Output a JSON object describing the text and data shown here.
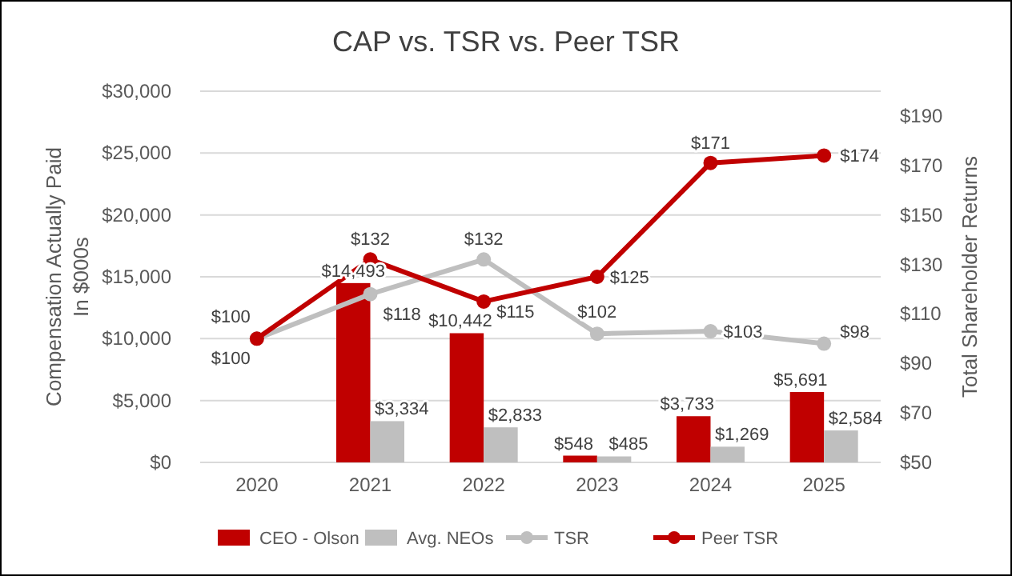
{
  "chart_data": {
    "type": "bar",
    "title": "CAP vs. TSR vs. Peer TSR",
    "ylabel": "Compensation Actually Paid In $000s",
    "y2label": "Total Shareholder Returns",
    "categories": [
      "2020",
      "2021",
      "2022",
      "2023",
      "2024",
      "2025"
    ],
    "series": [
      {
        "name": "CEO - Olson",
        "color": "#c00000",
        "values": [
          null,
          14493,
          10442,
          548,
          3733,
          5691
        ],
        "value_labels": [
          null,
          "$14,493",
          "$10,442",
          "$548",
          "$3,733",
          "$5,691"
        ]
      },
      {
        "name": "Avg. NEOs",
        "color": "#bfbfbf",
        "values": [
          null,
          3334,
          2833,
          485,
          1269,
          2584
        ],
        "value_labels": [
          null,
          "$3,334",
          "$2,833",
          "$485",
          "$1,269",
          "$2,584"
        ]
      },
      {
        "name": "TSR",
        "type": "line",
        "axis": "y2",
        "color": "#bfbfbf",
        "values": [
          100,
          118,
          132,
          102,
          103,
          98
        ],
        "value_labels": [
          "$100",
          "$118",
          "$132",
          "$102",
          "$103",
          "$98"
        ]
      },
      {
        "name": "Peer TSR",
        "type": "line",
        "axis": "y2",
        "color": "#c00000",
        "values": [
          100,
          132,
          115,
          125,
          171,
          174
        ],
        "value_labels": [
          "$100",
          "$132",
          "$115",
          "$125",
          "$171",
          "$174"
        ]
      }
    ],
    "ylim": [
      0,
      30000
    ],
    "yticks": [
      {
        "value": 0,
        "label": "$0"
      },
      {
        "value": 5000,
        "label": "$5,000"
      },
      {
        "value": 10000,
        "label": "$10,000"
      },
      {
        "value": 15000,
        "label": "$15,000"
      },
      {
        "value": 20000,
        "label": "$20,000"
      },
      {
        "value": 25000,
        "label": "$25,000"
      },
      {
        "value": 30000,
        "label": "$30,000"
      }
    ],
    "y2lim": [
      50,
      200
    ],
    "y2ticks": [
      {
        "value": 50,
        "label": "$50"
      },
      {
        "value": 70,
        "label": "$70"
      },
      {
        "value": 90,
        "label": "$90"
      },
      {
        "value": 110,
        "label": "$110"
      },
      {
        "value": 130,
        "label": "$130"
      },
      {
        "value": 150,
        "label": "$150"
      },
      {
        "value": 170,
        "label": "$170"
      },
      {
        "value": 190,
        "label": "$190"
      }
    ],
    "grid": "y",
    "legend": "bottom",
    "marker": "circle",
    "line_style": "solid"
  }
}
